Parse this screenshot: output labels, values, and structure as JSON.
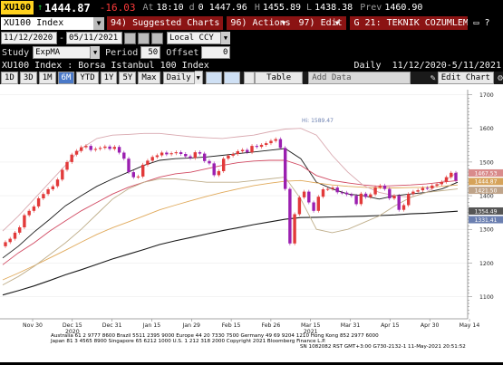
{
  "quote": {
    "ticker": "XU100",
    "last": "1444.87",
    "change": "-16.03",
    "time_label": "At",
    "time": "18:10",
    "open_label": "d",
    "open": "0",
    "open2": "1447.96",
    "high_label": "H",
    "high": "1455.89",
    "low_label": "L",
    "low": "1438.38",
    "prev_label": "Prev",
    "prev": "1460.90"
  },
  "toolbar": {
    "security": "XU100 Index",
    "btn_suggested": "94) Suggested Charts",
    "btn_actions": "96) Actions",
    "btn_edit": "97) Edit",
    "news": "G 21: TEKNIK COZUMLEM..."
  },
  "range": {
    "from": "11/12/2020",
    "to": "05/11/2021",
    "currency": "Local CCY"
  },
  "study": {
    "label": "Study",
    "value": "ExpMA",
    "period_label": "Period",
    "period": "50",
    "offset_label": "Offset",
    "offset": "0"
  },
  "legend": {
    "name": "XU100 Index : Borsa Istanbul 100 Index",
    "freq": "Daily",
    "span": "11/12/2020-5/11/2021"
  },
  "periods": [
    "1D",
    "3D",
    "1M",
    "6M",
    "YTD",
    "1Y",
    "5Y",
    "Max"
  ],
  "period_active": "6M",
  "controls": {
    "freq": "Daily",
    "table": "Table",
    "add_data": "Add Data",
    "edit_chart": "Edit Chart"
  },
  "chart_data": {
    "type": "line",
    "y_ticks": [
      1100,
      1200,
      1300,
      1400,
      1500,
      1600,
      1700
    ],
    "ylim": [
      1045,
      1715
    ],
    "x_ticks": [
      "Nov 30",
      "Dec 15",
      "Dec 31",
      "Jan 15",
      "Jan 29",
      "Feb 15",
      "Feb 26",
      "Mar 15",
      "Mar 31",
      "Apr 15",
      "Apr 30",
      "May 14"
    ],
    "year_labels": [
      {
        "text": "2020",
        "at": "Dec 15"
      },
      {
        "text": "2021",
        "at": "Mar 15"
      }
    ],
    "annotation": "Hi: 1589.47",
    "price_tags": [
      {
        "value": "1467.53",
        "color": "#d98b8b"
      },
      {
        "value": "1444.87",
        "color": "#d6a35a"
      },
      {
        "value": "1421.50",
        "color": "#bfa48a"
      },
      {
        "value": "1354.49",
        "color": "#555555"
      },
      {
        "value": "1331.41",
        "color": "#6b7fb0"
      }
    ],
    "candles": [
      [
        1262,
        1250
      ],
      [
        1272,
        1262
      ],
      [
        1290,
        1272
      ],
      [
        1306,
        1290
      ],
      [
        1342,
        1306
      ],
      [
        1355,
        1342
      ],
      [
        1368,
        1355
      ],
      [
        1392,
        1368
      ],
      [
        1405,
        1392
      ],
      [
        1419,
        1405
      ],
      [
        1428,
        1419
      ],
      [
        1448,
        1428
      ],
      [
        1477,
        1448
      ],
      [
        1500,
        1477
      ],
      [
        1522,
        1500
      ],
      [
        1533,
        1522
      ],
      [
        1544,
        1533
      ],
      [
        1548,
        1544
      ],
      [
        1536,
        1548
      ],
      [
        1539,
        1536
      ],
      [
        1542,
        1539
      ],
      [
        1546,
        1542
      ],
      [
        1539,
        1546
      ],
      [
        1545,
        1539
      ],
      [
        1528,
        1545
      ],
      [
        1510,
        1528
      ],
      [
        1470,
        1510
      ],
      [
        1455,
        1470
      ],
      [
        1457,
        1455
      ],
      [
        1492,
        1457
      ],
      [
        1504,
        1492
      ],
      [
        1515,
        1504
      ],
      [
        1520,
        1515
      ],
      [
        1528,
        1520
      ],
      [
        1523,
        1528
      ],
      [
        1526,
        1523
      ],
      [
        1529,
        1526
      ],
      [
        1524,
        1529
      ],
      [
        1517,
        1524
      ],
      [
        1512,
        1517
      ],
      [
        1529,
        1512
      ],
      [
        1525,
        1529
      ],
      [
        1503,
        1525
      ],
      [
        1496,
        1503
      ],
      [
        1461,
        1496
      ],
      [
        1473,
        1461
      ],
      [
        1510,
        1473
      ],
      [
        1519,
        1510
      ],
      [
        1524,
        1519
      ],
      [
        1532,
        1524
      ],
      [
        1536,
        1532
      ],
      [
        1529,
        1536
      ],
      [
        1548,
        1529
      ],
      [
        1545,
        1548
      ],
      [
        1551,
        1545
      ],
      [
        1556,
        1551
      ],
      [
        1563,
        1556
      ],
      [
        1568,
        1563
      ],
      [
        1542,
        1568
      ],
      [
        1420,
        1542
      ],
      [
        1258,
        1420
      ],
      [
        1345,
        1258
      ],
      [
        1395,
        1345
      ],
      [
        1412,
        1395
      ],
      [
        1380,
        1412
      ],
      [
        1355,
        1380
      ],
      [
        1397,
        1355
      ],
      [
        1419,
        1397
      ],
      [
        1420,
        1419
      ],
      [
        1424,
        1420
      ],
      [
        1410,
        1424
      ],
      [
        1409,
        1410
      ],
      [
        1404,
        1409
      ],
      [
        1400,
        1404
      ],
      [
        1375,
        1400
      ],
      [
        1406,
        1375
      ],
      [
        1396,
        1406
      ],
      [
        1404,
        1396
      ],
      [
        1425,
        1404
      ],
      [
        1430,
        1425
      ],
      [
        1420,
        1430
      ],
      [
        1392,
        1420
      ],
      [
        1400,
        1392
      ],
      [
        1358,
        1400
      ],
      [
        1372,
        1358
      ],
      [
        1405,
        1372
      ],
      [
        1412,
        1405
      ],
      [
        1416,
        1412
      ],
      [
        1423,
        1416
      ],
      [
        1422,
        1423
      ],
      [
        1430,
        1422
      ],
      [
        1434,
        1430
      ],
      [
        1441,
        1434
      ],
      [
        1455,
        1441
      ],
      [
        1468,
        1455
      ],
      [
        1445,
        1468
      ]
    ],
    "series": [
      {
        "color": "#1a1a1a",
        "values": [
          1215,
          1250,
          1292,
          1330,
          1370,
          1400,
          1428,
          1450,
          1470,
          1490,
          1505,
          1510,
          1512,
          1515,
          1520,
          1525,
          1530,
          1535,
          1540,
          1510,
          1440,
          1420,
          1405,
          1400,
          1390,
          1400,
          1405,
          1410,
          1420,
          1440
        ]
      },
      {
        "color": "#d14a62",
        "values": [
          1195,
          1230,
          1260,
          1295,
          1325,
          1355,
          1380,
          1405,
          1425,
          1440,
          1455,
          1465,
          1470,
          1480,
          1490,
          1498,
          1503,
          1505,
          1505,
          1490,
          1460,
          1445,
          1438,
          1432,
          1428,
          1430,
          1432,
          1435,
          1440,
          1445
        ]
      },
      {
        "color": "#e0a95a",
        "values": [
          1150,
          1170,
          1192,
          1215,
          1238,
          1262,
          1285,
          1305,
          1322,
          1340,
          1358,
          1372,
          1385,
          1398,
          1410,
          1420,
          1430,
          1437,
          1443,
          1445,
          1438,
          1432,
          1428,
          1425,
          1423,
          1423,
          1424,
          1425,
          1428,
          1432
        ]
      },
      {
        "color": "#1a1a1a",
        "values": [
          1105,
          1118,
          1132,
          1148,
          1165,
          1180,
          1196,
          1212,
          1226,
          1240,
          1255,
          1266,
          1276,
          1286,
          1296,
          1305,
          1314,
          1322,
          1330,
          1335,
          1336,
          1337,
          1338,
          1339,
          1341,
          1343,
          1346,
          1348,
          1351,
          1354
        ]
      },
      {
        "color": "#d9a9b0",
        "values": [
          1295,
          1340,
          1390,
          1440,
          1490,
          1540,
          1570,
          1580,
          1582,
          1585,
          1585,
          1580,
          1575,
          1572,
          1570,
          1575,
          1580,
          1590,
          1598,
          1600,
          1580,
          1520,
          1470,
          1430,
          1410,
          1400,
          1395,
          1410,
          1440,
          1470
        ]
      },
      {
        "color": "#bfae8a",
        "values": [
          1135,
          1160,
          1190,
          1225,
          1260,
          1300,
          1345,
          1390,
          1420,
          1440,
          1450,
          1450,
          1445,
          1440,
          1440,
          1440,
          1445,
          1450,
          1455,
          1390,
          1300,
          1290,
          1300,
          1320,
          1340,
          1370,
          1395,
          1410,
          1415,
          1420
        ]
      }
    ]
  },
  "footer": {
    "line1": "Australia 61 2 9777 8600 Brazil 5511 2395 9000 Europe 44 20 7330 7500 Germany 49 69 9204 1210 Hong Kong 852 2977 6000",
    "line2": "Japan 81 3 4565 8900        Singapore 65 6212 1000        U.S. 1 212 318 2000       Copyright 2021 Bloomberg Finance L.P.",
    "line3": "SN 1082082 RST  GMT+3:00 G730-2132-1 11-May-2021 20:51:52"
  }
}
